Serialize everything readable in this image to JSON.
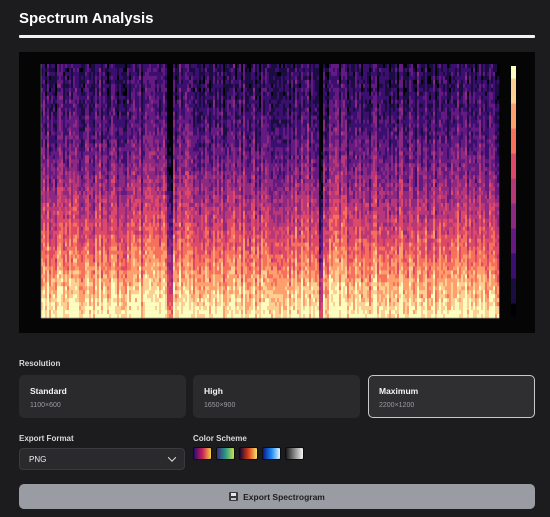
{
  "header": {
    "title": "Spectrum Analysis"
  },
  "resolution": {
    "label": "Resolution",
    "options": [
      {
        "name": "Standard",
        "dims": "1100×600"
      },
      {
        "name": "High",
        "dims": "1650×900"
      },
      {
        "name": "Maximum",
        "dims": "2200×1200"
      }
    ],
    "selected": "Maximum"
  },
  "export_format": {
    "label": "Export Format",
    "value": "PNG"
  },
  "color_scheme": {
    "label": "Color Scheme",
    "swatches": [
      {
        "name": "purple-red-yellow",
        "colors": [
          "#2b0b6e",
          "#c8205a",
          "#f6d03c"
        ]
      },
      {
        "name": "viridis",
        "colors": [
          "#3b2a7a",
          "#2a9a8a",
          "#c9e24a"
        ]
      },
      {
        "name": "inferno",
        "colors": [
          "#1a0a2e",
          "#d8401a",
          "#fbe46a"
        ]
      },
      {
        "name": "blue-cyan",
        "colors": [
          "#0a1a8a",
          "#1a8bf0",
          "#e6f6ff"
        ]
      },
      {
        "name": "grayscale",
        "colors": [
          "#1a1a1a",
          "#8a8a8a",
          "#f5f5f5"
        ]
      }
    ]
  },
  "export_button": {
    "label": "Export Spectrogram",
    "icon": "save-icon"
  },
  "spectrogram": {
    "palette": [
      "#000004",
      "#1b0c41",
      "#3b0f70",
      "#641a80",
      "#8c2981",
      "#b73779",
      "#de4968",
      "#f7705c",
      "#fe9f6d",
      "#fecf92",
      "#fcfdbf"
    ]
  }
}
